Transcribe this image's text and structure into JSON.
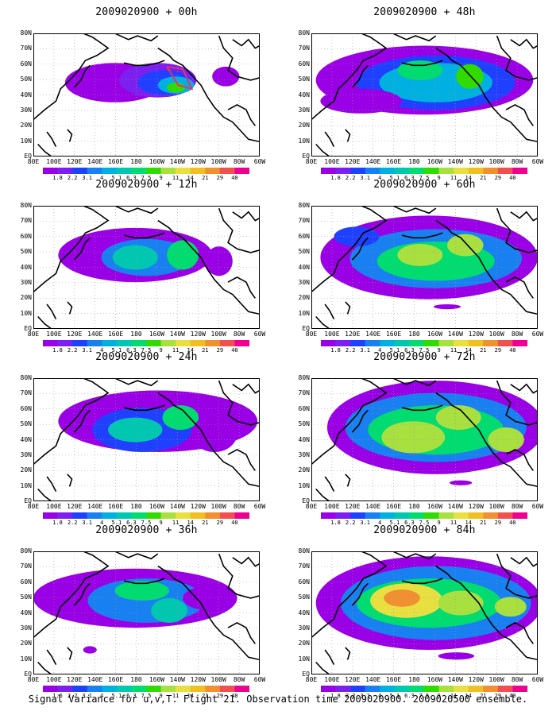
{
  "panels": [
    {
      "title": "2009020900 + 00h",
      "frame": "00h"
    },
    {
      "title": "2009020900 + 48h",
      "frame": "48h"
    },
    {
      "title": "2009020900 + 12h",
      "frame": "12h"
    },
    {
      "title": "2009020900 + 60h",
      "frame": "60h"
    },
    {
      "title": "2009020900 + 24h",
      "frame": "24h"
    },
    {
      "title": "2009020900 + 72h",
      "frame": "72h"
    },
    {
      "title": "2009020900 + 36h",
      "frame": "36h"
    },
    {
      "title": "2009020900 + 84h",
      "frame": "84h"
    }
  ],
  "axes": {
    "lat_labels": [
      "80N",
      "70N",
      "60N",
      "50N",
      "40N",
      "30N",
      "20N",
      "10N",
      "EQ"
    ],
    "lon_labels": [
      "80E",
      "100E",
      "120E",
      "140E",
      "160E",
      "180",
      "160W",
      "140W",
      "120W",
      "100W",
      "80W",
      "60W"
    ]
  },
  "colorbar": {
    "levels": [
      "1.8",
      "2.2",
      "3.1",
      "4",
      "5.1",
      "6.3",
      "7.5",
      "9",
      "11",
      "14",
      "21",
      "29",
      "40"
    ],
    "colors": [
      "#9a00e6",
      "#7c20f0",
      "#2040ff",
      "#1880f0",
      "#00b0e0",
      "#00c8b0",
      "#00dc70",
      "#30dc00",
      "#a8e040",
      "#e8e040",
      "#f0c020",
      "#f09030",
      "#f05050",
      "#f00090"
    ],
    "bottom_left_levels": [
      "1.6",
      "2.2",
      "3.1",
      "4",
      "5.1",
      "6.3",
      "7.5",
      "9",
      "11",
      "14",
      "21",
      "29",
      "40"
    ]
  },
  "caption": "Signal Variance for u,v,T. Flight 21. Observation time 2009020900. 2009020500 ensemble.",
  "colors": {
    "coast": "#000000",
    "grid": "#999999",
    "flight_track": "#e8306a"
  }
}
